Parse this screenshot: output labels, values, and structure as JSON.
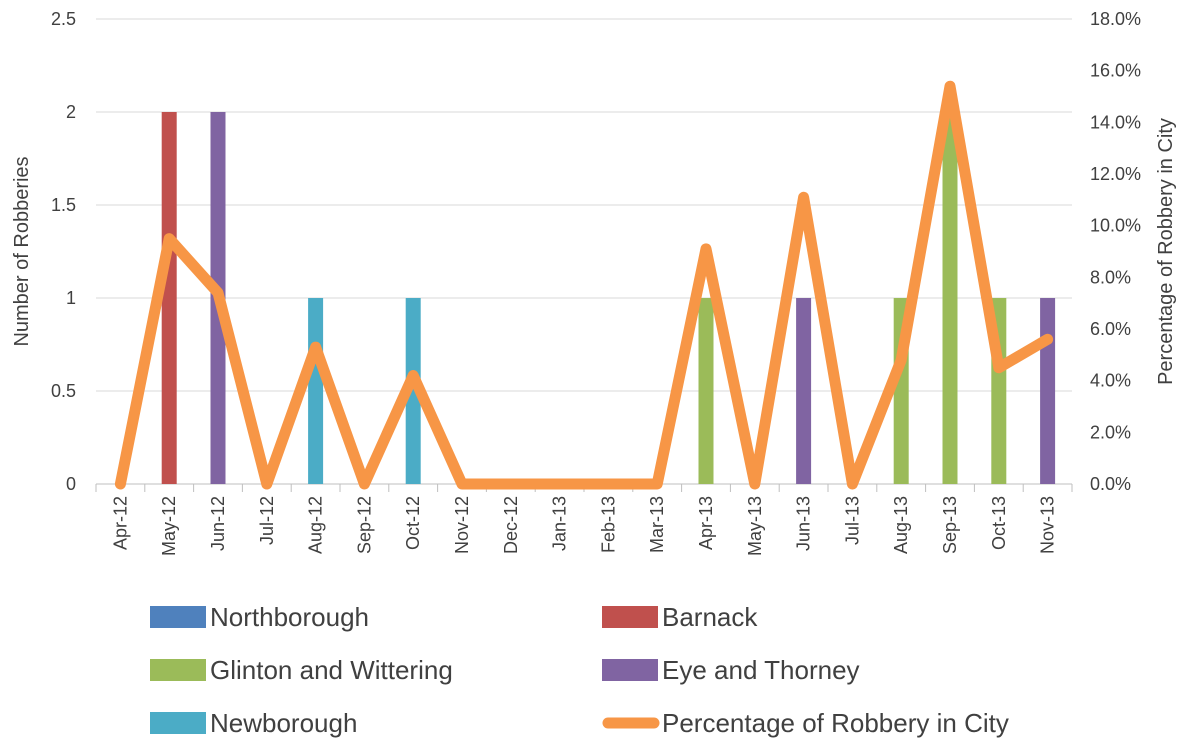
{
  "chart_data": {
    "type": "bar",
    "categories": [
      "Apr-12",
      "May-12",
      "Jun-12",
      "Jul-12",
      "Aug-12",
      "Sep-12",
      "Oct-12",
      "Nov-12",
      "Dec-12",
      "Jan-13",
      "Feb-13",
      "Mar-13",
      "Apr-13",
      "May-13",
      "Jun-13",
      "Jul-13",
      "Aug-13",
      "Sep-13",
      "Oct-13",
      "Nov-13"
    ],
    "ylabel": "Number of Robberies",
    "y2label": "Percentage of Robbery in City",
    "ylim": [
      0,
      2.5
    ],
    "y2lim": [
      0,
      0.18
    ],
    "y_ticks": [
      "0",
      "0.5",
      "1",
      "1.5",
      "2",
      "2.5"
    ],
    "y2_ticks": [
      "0.0%",
      "2.0%",
      "4.0%",
      "6.0%",
      "8.0%",
      "10.0%",
      "12.0%",
      "14.0%",
      "16.0%",
      "18.0%"
    ],
    "grid": "horizontal",
    "legend_position": "bottom",
    "series": [
      {
        "name": "Northborough",
        "kind": "bar",
        "color": "#4f81bd",
        "values": [
          0,
          0,
          0,
          0,
          0,
          0,
          0,
          0,
          0,
          0,
          0,
          0,
          0,
          0,
          0,
          0,
          0,
          0,
          0,
          0
        ]
      },
      {
        "name": "Barnack",
        "kind": "bar",
        "color": "#c0504d",
        "values": [
          0,
          2,
          0,
          0,
          0,
          0,
          0,
          0,
          0,
          0,
          0,
          0,
          0,
          0,
          0,
          0,
          0,
          0,
          0,
          0
        ]
      },
      {
        "name": "Glinton and Wittering",
        "kind": "bar",
        "color": "#9bbb59",
        "values": [
          0,
          0,
          0,
          0,
          0,
          0,
          0,
          0,
          0,
          0,
          0,
          0,
          1,
          0,
          0,
          0,
          1,
          2,
          1,
          0
        ]
      },
      {
        "name": "Eye and Thorney",
        "kind": "bar",
        "color": "#8064a2",
        "values": [
          0,
          0,
          2,
          0,
          0,
          0,
          0,
          0,
          0,
          0,
          0,
          0,
          0,
          0,
          1,
          0,
          0,
          0,
          0,
          1
        ]
      },
      {
        "name": "Newborough",
        "kind": "bar",
        "color": "#4bacc6",
        "values": [
          0,
          0,
          0,
          0,
          1,
          0,
          1,
          0,
          0,
          0,
          0,
          0,
          0,
          0,
          0,
          0,
          0,
          0,
          0,
          0
        ]
      },
      {
        "name": "Percentage of Robbery in City",
        "kind": "line",
        "axis": "secondary",
        "color": "#f79646",
        "values": [
          0,
          0.095,
          0.074,
          0,
          0.053,
          0,
          0.042,
          0,
          0,
          0,
          0,
          0,
          0.091,
          0,
          0.111,
          0,
          0.048,
          0.154,
          0.045,
          0.056
        ]
      }
    ]
  }
}
